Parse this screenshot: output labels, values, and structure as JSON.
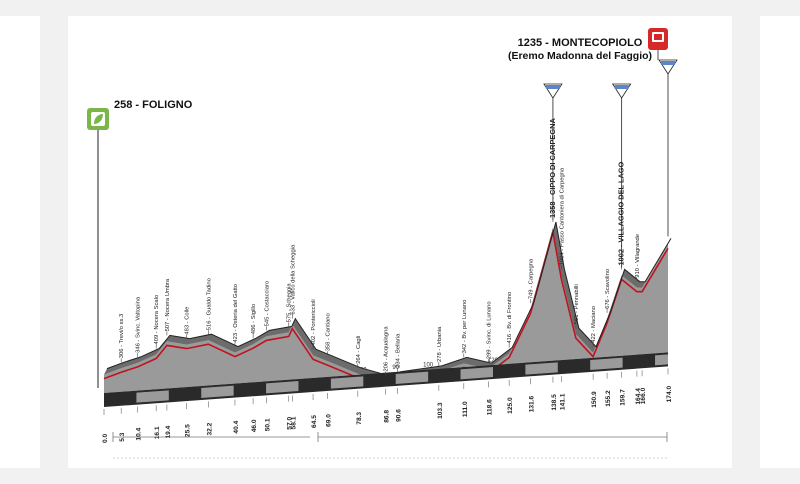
{
  "profile": {
    "start": {
      "altitude": "258",
      "name": "FOLIGNO"
    },
    "finish": {
      "altitude": "1235",
      "name": "MONTECOPIOLO",
      "subtitle": "(Eremo Madonna del Faggio)"
    },
    "finish_distance_label": "174.0",
    "colors": {
      "profile_fill": "#9a9a9a",
      "profile_line": "#c1121f",
      "base": "#2a2a2a",
      "top_line": "#222222",
      "start_icon": "#7ab648",
      "finish_icon": "#d62828"
    },
    "points": [
      {
        "km": 0.0,
        "alt": 258,
        "label": "0.0",
        "wp": ""
      },
      {
        "km": 5.3,
        "alt": 306,
        "label": "5.3",
        "wp": "306 - Trevi/o ss.3"
      },
      {
        "km": 10.4,
        "alt": 346,
        "label": "10.4",
        "wp": "346 - Svinc. Valtopina"
      },
      {
        "km": 16.1,
        "alt": 409,
        "label": "16.1",
        "wp": "409 - Nocera Scalo"
      },
      {
        "km": 19.4,
        "alt": 507,
        "label": "19.4",
        "wp": "507 - Nocera Umbra"
      },
      {
        "km": 25.5,
        "alt": 483,
        "label": "25.5",
        "wp": "483 - Colle"
      },
      {
        "km": 32.2,
        "alt": 516,
        "label": "32.2",
        "wp": "516 - Gualdo Tadino"
      },
      {
        "km": 40.4,
        "alt": 423,
        "label": "40.4",
        "wp": "423 - Osteria del Gatto"
      },
      {
        "km": 46.0,
        "alt": 486,
        "label": "46.0",
        "wp": "486 - Sigillo"
      },
      {
        "km": 50.1,
        "alt": 545,
        "label": "50.1",
        "wp": "545 - Costacciaro"
      },
      {
        "km": 57.0,
        "alt": 575,
        "label": "57.0",
        "wp": "575 - Scheggia"
      },
      {
        "km": 58.1,
        "alt": 633,
        "label": "58.1",
        "wp": "633 - Valico della Scheggia"
      },
      {
        "km": 64.5,
        "alt": 402,
        "label": "64.5",
        "wp": "402 - Pontericcioli"
      },
      {
        "km": 69.0,
        "alt": 358,
        "label": "69.0",
        "wp": "358 - Cantiano"
      },
      {
        "km": 78.3,
        "alt": 264,
        "label": "78.3",
        "wp": "264 - Cagli"
      },
      {
        "km": 86.8,
        "alt": 206,
        "label": "86.8",
        "wp": "206 - Acqualagna"
      },
      {
        "km": 90.6,
        "alt": 234,
        "label": "90.6",
        "wp": "234 - Bellaria"
      },
      {
        "km": 103.3,
        "alt": 278,
        "label": "103.3",
        "wp": "278 - Urbania"
      },
      {
        "km": 111.0,
        "alt": 342,
        "label": "111.0",
        "wp": "342 - Bv. per Lunano"
      },
      {
        "km": 118.6,
        "alt": 299,
        "label": "118.6",
        "wp": "299 - Svinc. di Lunano"
      },
      {
        "km": 125.0,
        "alt": 416,
        "label": "125.0",
        "wp": "416 - Bv. di Frontino"
      },
      {
        "km": 131.6,
        "alt": 749,
        "label": "131.6",
        "wp": "749 - Carpegna"
      },
      {
        "km": 138.5,
        "alt": 1358,
        "label": "138.5",
        "wp": "1358 - CIPPO DI CARPEGNA",
        "bold": true
      },
      {
        "km": 141.1,
        "alt": 1004,
        "label": "141.1",
        "wp": "1004 - Passo Cantoniera di Carpegna"
      },
      {
        "km": 145.6,
        "alt": 561,
        "label": "",
        "wp": "561 - Pennabilli"
      },
      {
        "km": 150.9,
        "alt": 422,
        "label": "150.9",
        "wp": "422 - Maciano"
      },
      {
        "km": 155.2,
        "alt": 676,
        "label": "155.2",
        "wp": "676 - Scavolino"
      },
      {
        "km": 159.7,
        "alt": 1002,
        "label": "159.7",
        "wp": "1002 - VILLAGGIO DEL LAGO",
        "bold": true
      },
      {
        "km": 164.4,
        "alt": 910,
        "label": "164.4",
        "wp": "910 - Villagrande"
      },
      {
        "km": 166.0,
        "alt": 910,
        "label": "166.0",
        "wp": ""
      },
      {
        "km": 174.0,
        "alt": 1235,
        "label": "174.0",
        "wp": ""
      }
    ],
    "ticks": [
      "10",
      "20",
      "30",
      "40",
      "50",
      "60",
      "70",
      "80",
      "90",
      "100",
      "110",
      "120",
      "130",
      "140",
      "150",
      "160",
      "170"
    ],
    "tick_km": [
      10,
      20,
      30,
      40,
      50,
      60,
      70,
      80,
      90,
      100,
      110,
      120,
      130,
      140,
      150,
      160,
      170
    ],
    "gpm_km": [
      138.5,
      159.7,
      174.0
    ]
  }
}
